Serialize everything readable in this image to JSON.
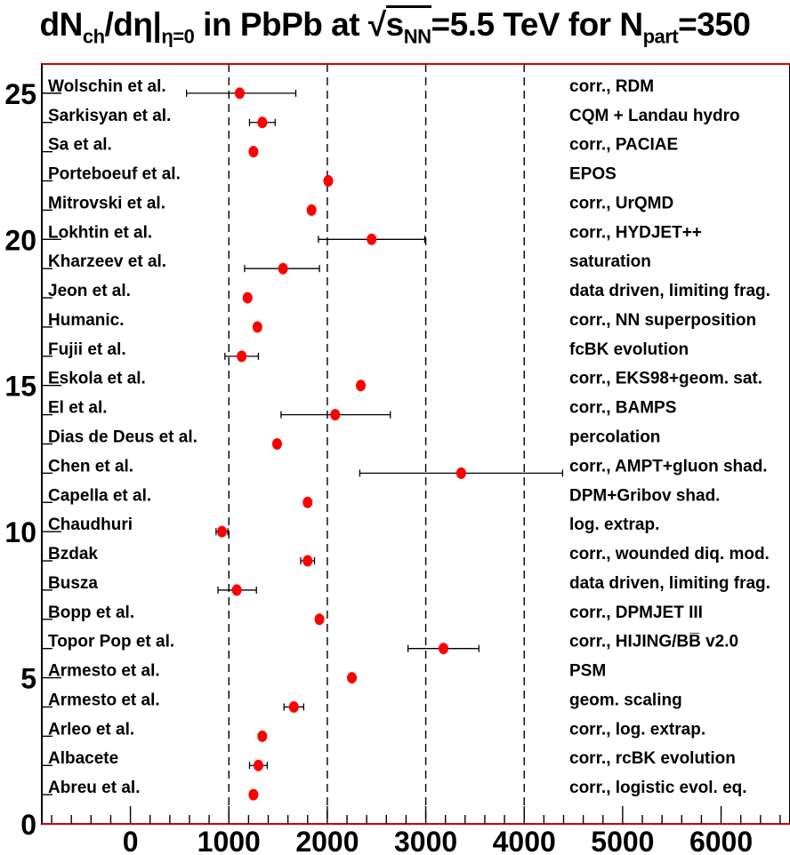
{
  "chart_data": {
    "type": "scatter",
    "title_parts": {
      "a": "dN",
      "a_sub": "ch",
      "b": "/dη|",
      "b_sub": "η=0",
      "c": " in PbPb at ",
      "root": "√",
      "s": "s",
      "s_sub": "NN",
      "d": "=5.5 TeV for N",
      "d_sub": "part",
      "e": "=350"
    },
    "xlim": [
      -900,
      6700
    ],
    "ylim": [
      0,
      26
    ],
    "x_ticks": [
      "0",
      "1000",
      "2000",
      "3000",
      "4000",
      "5000",
      "6000"
    ],
    "y_ticks": [
      "0",
      "5",
      "10",
      "15",
      "20",
      "25"
    ],
    "dashed_lines_x": [
      1000,
      2000,
      3000,
      4000
    ],
    "marker_color": "#ff0000",
    "points": [
      {
        "y": 25,
        "author": "Wolschin et al.",
        "model": "corr., RDM",
        "x": 1110,
        "xerr": [
          570,
          1680
        ]
      },
      {
        "y": 24,
        "author": "Sarkisyan et al.",
        "model": "CQM + Landau hydro",
        "x": 1340,
        "xerr": [
          1210,
          1470
        ]
      },
      {
        "y": 23,
        "author": "Sa et al.",
        "model": "corr., PACIAE",
        "x": 1250,
        "xerr": null
      },
      {
        "y": 22,
        "author": "Porteboeuf et al.",
        "model": "EPOS",
        "x": 2010,
        "xerr": null
      },
      {
        "y": 21,
        "author": "Mitrovski et al.",
        "model": "corr., UrQMD",
        "x": 1840,
        "xerr": null
      },
      {
        "y": 20,
        "author": "Lokhtin et al.",
        "model": "corr., HYDJET++",
        "x": 2450,
        "xerr": [
          1910,
          2990
        ]
      },
      {
        "y": 19,
        "author": "Kharzeev et al.",
        "model": "saturation",
        "x": 1550,
        "xerr": [
          1160,
          1920
        ]
      },
      {
        "y": 18,
        "author": "Jeon et al.",
        "model": "data driven, limiting frag.",
        "x": 1190,
        "xerr": null
      },
      {
        "y": 17,
        "author": "Humanic.",
        "model": "corr., NN superposition",
        "x": 1290,
        "xerr": null
      },
      {
        "y": 16,
        "author": "Fujii et al.",
        "model": "fcBK evolution",
        "x": 1130,
        "xerr": [
          960,
          1300
        ]
      },
      {
        "y": 15,
        "author": "Eskola et al.",
        "model": "corr., EKS98+geom. sat.",
        "x": 2340,
        "xerr": null
      },
      {
        "y": 14,
        "author": "El et al.",
        "model": "corr., BAMPS",
        "x": 2080,
        "xerr": [
          1530,
          2640
        ]
      },
      {
        "y": 13,
        "author": "Dias de Deus et al.",
        "model": "percolation",
        "x": 1490,
        "xerr": null
      },
      {
        "y": 12,
        "author": "Chen et al.",
        "model": "corr., AMPT+gluon shad.",
        "x": 3360,
        "xerr": [
          2330,
          4390
        ]
      },
      {
        "y": 11,
        "author": "Capella et al.",
        "model": "DPM+Gribov shad.",
        "x": 1800,
        "xerr": null
      },
      {
        "y": 10,
        "author": "Chaudhuri",
        "model": "log. extrap.",
        "x": 930,
        "xerr": [
          870,
          990
        ]
      },
      {
        "y": 9,
        "author": "Bzdak",
        "model": "corr., wounded diq. mod.",
        "x": 1800,
        "xerr": [
          1730,
          1870
        ]
      },
      {
        "y": 8,
        "author": "Busza",
        "model": "data driven, limiting frag.",
        "x": 1080,
        "xerr": [
          890,
          1280
        ]
      },
      {
        "y": 7,
        "author": "Bopp et al.",
        "model": "corr., DPMJET III",
        "x": 1920,
        "xerr": null
      },
      {
        "y": 6,
        "author": "Topor Pop et al.",
        "model": "corr., HIJING/BB̅ v2.0",
        "x": 3180,
        "xerr": [
          2820,
          3540
        ]
      },
      {
        "y": 5,
        "author": "Armesto et al.",
        "model": "PSM",
        "x": 2250,
        "xerr": null
      },
      {
        "y": 4,
        "author": "Armesto et al.",
        "model": "geom. scaling",
        "x": 1660,
        "xerr": [
          1560,
          1760
        ]
      },
      {
        "y": 3,
        "author": "Arleo et al.",
        "model": "corr., log. extrap.",
        "x": 1340,
        "xerr": null
      },
      {
        "y": 2,
        "author": "Albacete",
        "model": "corr., rcBK evolution",
        "x": 1300,
        "xerr": [
          1210,
          1390
        ]
      },
      {
        "y": 1,
        "author": "Abreu et al.",
        "model": "corr., logistic evol. eq.",
        "x": 1250,
        "xerr": null
      }
    ]
  }
}
